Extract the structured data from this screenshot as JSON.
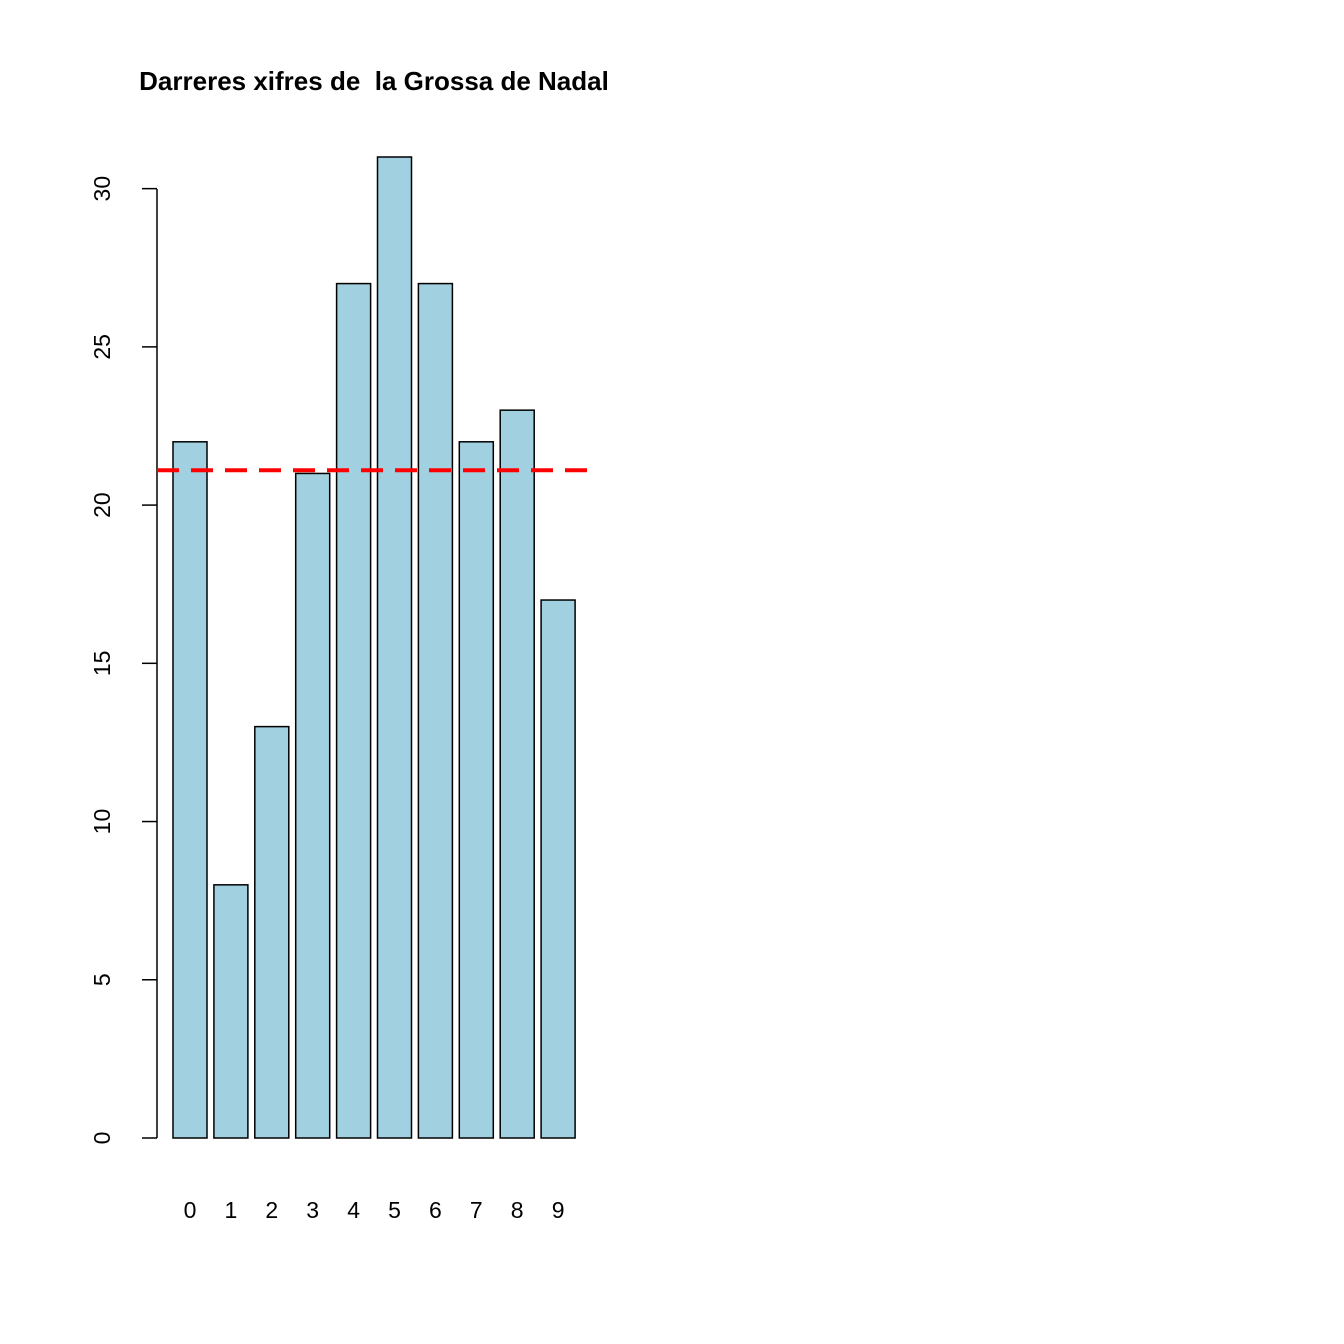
{
  "chart_data": {
    "type": "bar",
    "title": "Darreres xifres de  la Grossa de Nadal",
    "xlabel": "",
    "ylabel": "",
    "categories": [
      "0",
      "1",
      "2",
      "3",
      "4",
      "5",
      "6",
      "7",
      "8",
      "9"
    ],
    "values": [
      22,
      8,
      13,
      21,
      27,
      31,
      27,
      22,
      23,
      17
    ],
    "ylim": [
      0,
      31
    ],
    "yticks": [
      "0",
      "5",
      "10",
      "15",
      "20",
      "25",
      "30"
    ],
    "reference_line": {
      "value": 21.1,
      "style": "dashed",
      "color": "#ff0000"
    },
    "bar_color": "#a1d0e0",
    "bar_border_color": "#000000",
    "grid": false,
    "legend": "none"
  }
}
